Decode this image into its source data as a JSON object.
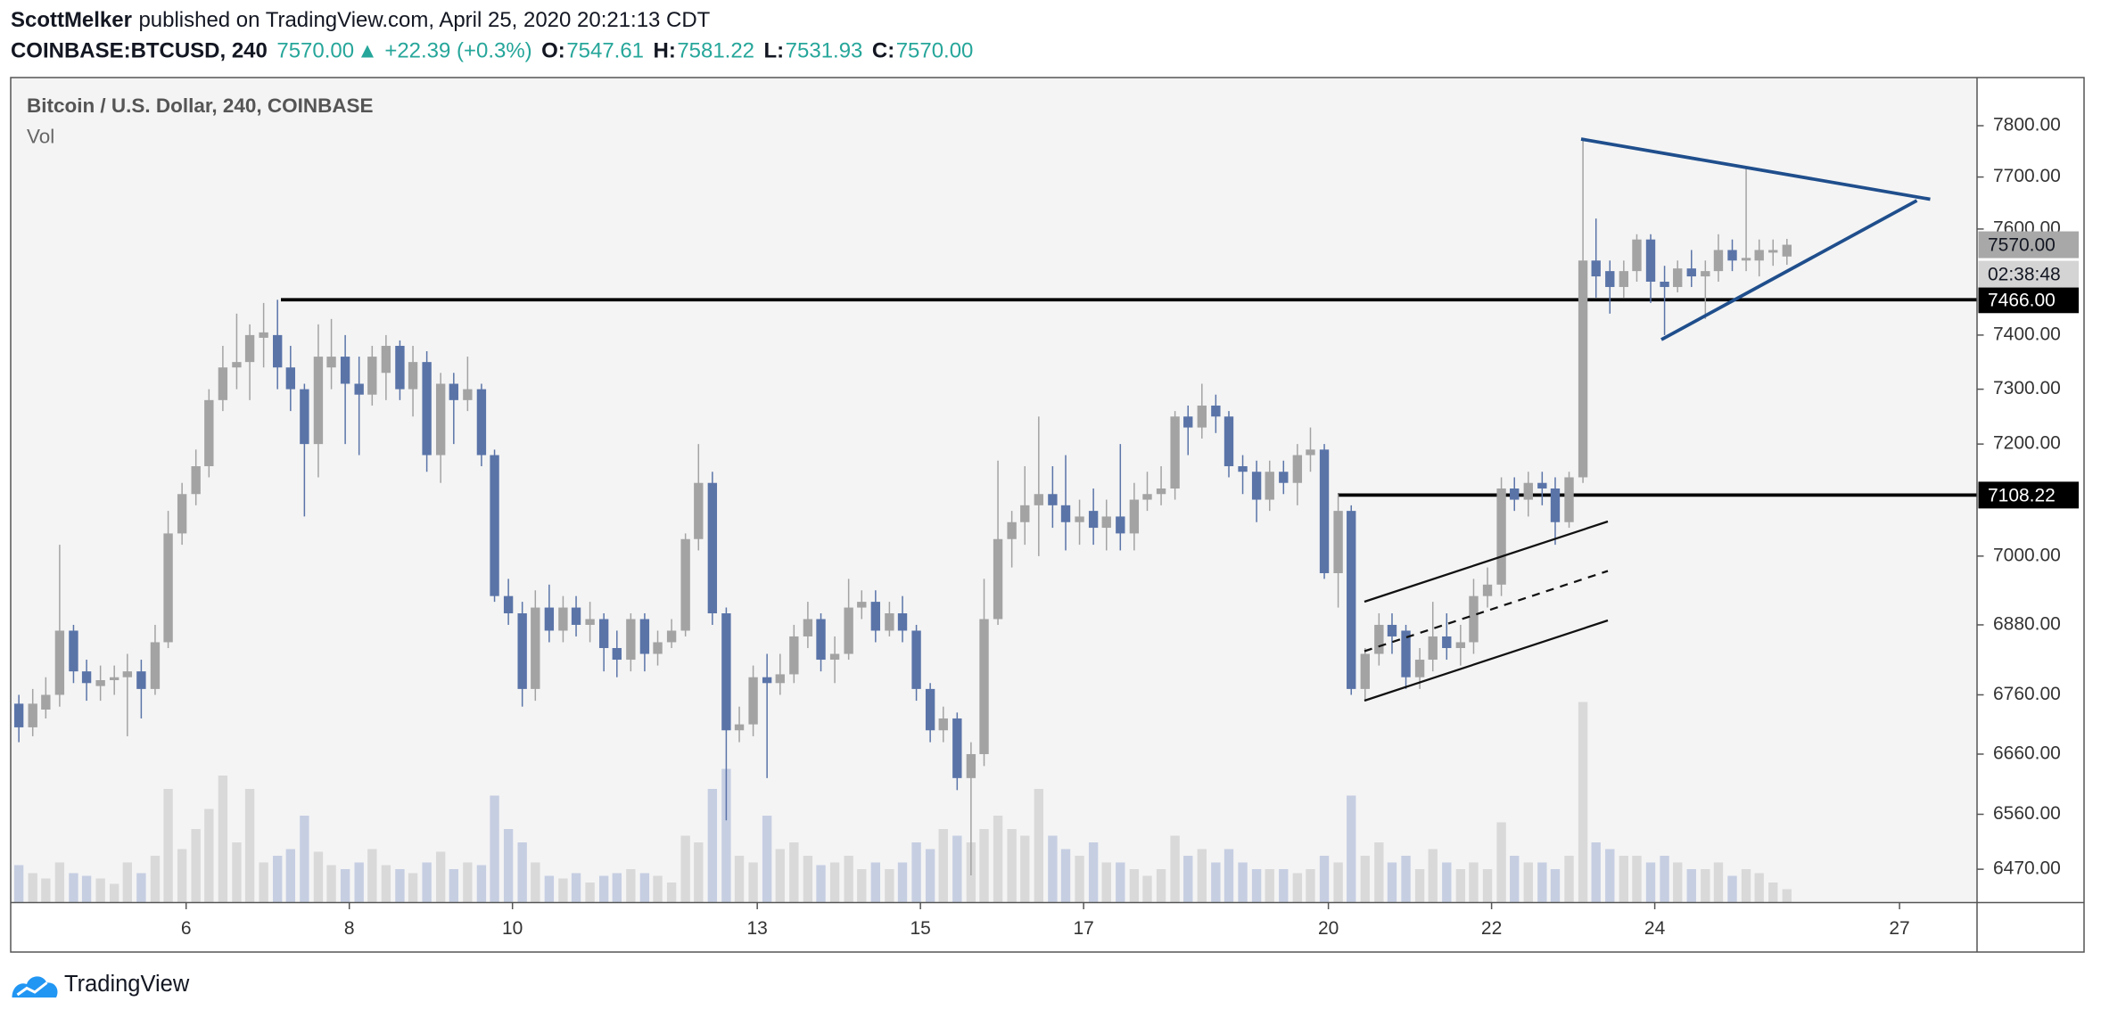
{
  "header": {
    "author": "ScottMelker",
    "published": "published on TradingView.com, April 25, 2020 20:21:13 CDT",
    "symbol": "COINBASE:BTCUSD, 240",
    "last": "7570.00",
    "change_arrow": "▲",
    "change": "+22.39 (+0.3%)",
    "ohlc": [
      {
        "label": "O:",
        "value": "7547.61"
      },
      {
        "label": "H:",
        "value": "7581.22"
      },
      {
        "label": "L:",
        "value": "7531.93"
      },
      {
        "label": "C:",
        "value": "7570.00"
      }
    ]
  },
  "footer": {
    "brand": "TradingView"
  },
  "chart_data": {
    "type": "candlestick",
    "title": "Bitcoin / U.S. Dollar, 240, COINBASE",
    "volume_label": "Vol",
    "log_scale": true,
    "grid": false,
    "up_color": "#a3a3a3",
    "down_color": "#5a74a8",
    "volume_up_color": "#d9d9d9",
    "volume_down_color": "#c6cee2",
    "xlim": [
      3.85,
      27.95
    ],
    "xticks": [
      6,
      8,
      10,
      13,
      15,
      17,
      20,
      22,
      24,
      27
    ],
    "ylim": [
      6416,
      7895
    ],
    "yticks": [
      {
        "value": 6470,
        "label": "6470.00"
      },
      {
        "value": 6560,
        "label": "6560.00"
      },
      {
        "value": 6660,
        "label": "6660.00"
      },
      {
        "value": 6760,
        "label": "6760.00"
      },
      {
        "value": 6880,
        "label": "6880.00"
      },
      {
        "value": 7000,
        "label": "7000.00"
      },
      {
        "value": 7200,
        "label": "7200.00"
      },
      {
        "value": 7300,
        "label": "7300.00"
      },
      {
        "value": 7400,
        "label": "7400.00"
      },
      {
        "value": 7600,
        "label": "7600.00"
      },
      {
        "value": 7700,
        "label": "7700.00"
      },
      {
        "value": 7800,
        "label": "7800.00"
      }
    ],
    "y2lim": [
      0,
      1000
    ],
    "price_label": {
      "value": 7570,
      "label": "7570.00"
    },
    "countdown": "02:38:48",
    "levels": [
      {
        "value": 7466,
        "label": "7466.00"
      },
      {
        "value": 7108.22,
        "label": "7108.22"
      }
    ],
    "x": [
      3.95,
      4.12,
      4.28,
      4.45,
      4.62,
      4.78,
      4.95,
      5.12,
      5.28,
      5.45,
      5.62,
      5.78,
      5.95,
      6.12,
      6.28,
      6.45,
      6.62,
      6.78,
      6.95,
      7.12,
      7.28,
      7.45,
      7.62,
      7.78,
      7.95,
      8.12,
      8.28,
      8.45,
      8.62,
      8.78,
      8.95,
      9.12,
      9.28,
      9.45,
      9.62,
      9.78,
      9.95,
      10.12,
      10.28,
      10.45,
      10.62,
      10.78,
      10.95,
      11.12,
      11.28,
      11.45,
      11.62,
      11.78,
      11.95,
      12.12,
      12.28,
      12.45,
      12.62,
      12.78,
      12.95,
      13.12,
      13.28,
      13.45,
      13.62,
      13.78,
      13.95,
      14.12,
      14.28,
      14.45,
      14.62,
      14.78,
      14.95,
      15.12,
      15.28,
      15.45,
      15.62,
      15.78,
      15.95,
      16.12,
      16.28,
      16.45,
      16.62,
      16.78,
      16.95,
      17.12,
      17.28,
      17.45,
      17.62,
      17.78,
      17.95,
      18.12,
      18.28,
      18.45,
      18.62,
      18.78,
      18.95,
      19.12,
      19.28,
      19.45,
      19.62,
      19.78,
      19.95,
      20.12,
      20.28,
      20.45,
      20.62,
      20.78,
      20.95,
      21.12,
      21.28,
      21.45,
      21.62,
      21.78,
      21.95,
      22.12,
      22.28,
      22.45,
      22.62,
      22.78,
      22.95,
      23.12,
      23.28,
      23.45,
      23.62,
      23.78,
      23.95,
      24.12,
      24.28,
      24.45,
      24.62,
      24.78,
      24.95,
      25.12,
      25.28,
      25.45,
      25.62
    ],
    "open": [
      6745,
      6705,
      6735,
      6760,
      6870,
      6800,
      6775,
      6785,
      6790,
      6800,
      6770,
      6850,
      7040,
      7110,
      7160,
      7280,
      7340,
      7350,
      7395,
      7400,
      7340,
      7300,
      7200,
      7340,
      7360,
      7310,
      7290,
      7330,
      7380,
      7300,
      7350,
      7180,
      7310,
      7280,
      7300,
      7180,
      6930,
      6900,
      6770,
      6910,
      6870,
      6910,
      6880,
      6890,
      6840,
      6820,
      6890,
      6830,
      6850,
      6870,
      7030,
      7130,
      6900,
      6700,
      6710,
      6790,
      6780,
      6795,
      6860,
      6890,
      6820,
      6830,
      6910,
      6920,
      6870,
      6900,
      6870,
      6770,
      6700,
      6720,
      6620,
      6660,
      6890,
      7030,
      7060,
      7090,
      7110,
      7090,
      7060,
      7080,
      7050,
      7070,
      7040,
      7100,
      7110,
      7120,
      7250,
      7230,
      7270,
      7250,
      7160,
      7150,
      7100,
      7150,
      7130,
      7180,
      7190,
      6970,
      7080,
      6770,
      6830,
      6880,
      6870,
      6790,
      6820,
      6860,
      6840,
      6850,
      6930,
      6950,
      7120,
      7100,
      7130,
      7120,
      7060,
      7140,
      7540,
      7520,
      7490,
      7520,
      7580,
      7500,
      7490,
      7525,
      7510,
      7520,
      7560,
      7540,
      7540,
      7555,
      7547.61
    ],
    "high": [
      6760,
      6770,
      6790,
      7020,
      6880,
      6820,
      6810,
      6810,
      6830,
      6820,
      6880,
      7080,
      7130,
      7190,
      7300,
      7380,
      7440,
      7420,
      7460,
      7466,
      7380,
      7310,
      7420,
      7430,
      7400,
      7360,
      7380,
      7400,
      7390,
      7380,
      7370,
      7330,
      7330,
      7360,
      7310,
      7190,
      6960,
      6920,
      6940,
      6950,
      6930,
      6930,
      6920,
      6900,
      6870,
      6900,
      6900,
      6870,
      6890,
      7040,
      7200,
      7150,
      6910,
      6740,
      6810,
      6830,
      6830,
      6880,
      6920,
      6900,
      6860,
      6960,
      6940,
      6940,
      6920,
      6930,
      6880,
      6780,
      6740,
      6730,
      6680,
      6960,
      7170,
      7080,
      7160,
      7250,
      7160,
      7180,
      7100,
      7120,
      7100,
      7200,
      7130,
      7150,
      7160,
      7260,
      7270,
      7310,
      7290,
      7260,
      7180,
      7170,
      7170,
      7170,
      7200,
      7230,
      7200,
      7110,
      7090,
      6840,
      6900,
      6900,
      6880,
      6840,
      6920,
      6900,
      6880,
      6960,
      6980,
      7140,
      7140,
      7150,
      7150,
      7140,
      7150,
      7775,
      7620,
      7540,
      7540,
      7590,
      7590,
      7530,
      7540,
      7560,
      7540,
      7590,
      7580,
      7720,
      7580,
      7580,
      7581.22
    ],
    "low": [
      6680,
      6690,
      6720,
      6740,
      6780,
      6750,
      6750,
      6760,
      6690,
      6720,
      6760,
      6840,
      7020,
      7090,
      7140,
      7260,
      7300,
      7280,
      7340,
      7300,
      7260,
      7070,
      7140,
      7300,
      7200,
      7180,
      7270,
      7280,
      7280,
      7250,
      7150,
      7130,
      7200,
      7260,
      7160,
      6920,
      6880,
      6740,
      6750,
      6850,
      6850,
      6860,
      6850,
      6800,
      6790,
      6800,
      6800,
      6810,
      6840,
      6860,
      7010,
      6880,
      6550,
      6680,
      6690,
      6620,
      6760,
      6780,
      6840,
      6800,
      6780,
      6820,
      6890,
      6850,
      6860,
      6850,
      6750,
      6680,
      6680,
      6600,
      6460,
      6640,
      6880,
      6980,
      7020,
      7000,
      7050,
      7010,
      7020,
      7020,
      7010,
      7010,
      7010,
      7080,
      7090,
      7100,
      7180,
      7210,
      7220,
      7140,
      7110,
      7060,
      7080,
      7110,
      7090,
      7150,
      6960,
      6910,
      6760,
      6750,
      6810,
      6830,
      6770,
      6770,
      6800,
      6820,
      6810,
      6830,
      6910,
      6930,
      7080,
      7070,
      7090,
      7020,
      7050,
      7130,
      7470,
      7440,
      7470,
      7500,
      7460,
      7400,
      7480,
      7490,
      7430,
      7500,
      7520,
      7520,
      7510,
      7530,
      7531.93
    ],
    "close": [
      6705,
      6745,
      6760,
      6870,
      6800,
      6780,
      6785,
      6790,
      6800,
      6770,
      6850,
      7040,
      7110,
      7160,
      7280,
      7340,
      7350,
      7400,
      7405,
      7340,
      7300,
      7200,
      7360,
      7360,
      7310,
      7290,
      7360,
      7380,
      7300,
      7350,
      7180,
      7310,
      7280,
      7300,
      7180,
      6930,
      6900,
      6770,
      6910,
      6870,
      6910,
      6880,
      6890,
      6840,
      6820,
      6890,
      6830,
      6850,
      6870,
      7030,
      7130,
      6900,
      6700,
      6710,
      6790,
      6780,
      6795,
      6860,
      6890,
      6820,
      6830,
      6910,
      6920,
      6870,
      6900,
      6870,
      6770,
      6700,
      6720,
      6620,
      6660,
      6890,
      7030,
      7060,
      7090,
      7110,
      7090,
      7060,
      7070,
      7050,
      7070,
      7040,
      7100,
      7110,
      7120,
      7250,
      7230,
      7270,
      7250,
      7160,
      7150,
      7100,
      7150,
      7130,
      7180,
      7190,
      6970,
      7080,
      6770,
      6830,
      6880,
      6860,
      6790,
      6820,
      6860,
      6840,
      6850,
      6930,
      6950,
      7120,
      7100,
      7130,
      7120,
      7060,
      7140,
      7540,
      7510,
      7490,
      7520,
      7580,
      7500,
      7490,
      7525,
      7510,
      7520,
      7560,
      7540,
      7545,
      7560,
      7560,
      7570
    ],
    "volume": [
      140,
      110,
      90,
      150,
      110,
      100,
      90,
      70,
      150,
      110,
      175,
      425,
      200,
      275,
      350,
      475,
      225,
      425,
      150,
      175,
      200,
      325,
      190,
      140,
      125,
      150,
      200,
      140,
      125,
      110,
      150,
      190,
      125,
      150,
      140,
      400,
      275,
      225,
      150,
      100,
      90,
      110,
      75,
      100,
      110,
      125,
      110,
      100,
      75,
      250,
      225,
      425,
      500,
      175,
      150,
      325,
      200,
      225,
      175,
      140,
      150,
      175,
      125,
      150,
      125,
      150,
      225,
      200,
      275,
      250,
      225,
      275,
      325,
      275,
      250,
      425,
      250,
      200,
      175,
      225,
      150,
      150,
      125,
      100,
      125,
      250,
      175,
      200,
      150,
      200,
      150,
      125,
      125,
      125,
      110,
      125,
      175,
      150,
      400,
      175,
      225,
      150,
      175,
      125,
      200,
      150,
      125,
      150,
      125,
      300,
      175,
      150,
      150,
      125,
      175,
      750,
      225,
      200,
      175,
      175,
      150,
      175,
      150,
      125,
      125,
      150,
      100,
      125,
      110,
      75,
      50
    ]
  }
}
